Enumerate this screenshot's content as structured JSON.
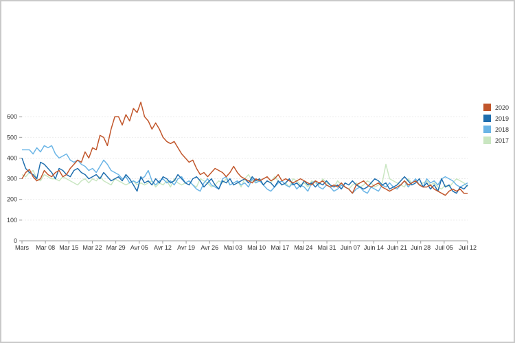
{
  "chart_data": {
    "type": "line",
    "title": "",
    "xlabel": "",
    "ylabel": "",
    "ylim": [
      0,
      700
    ],
    "yticks": [
      0,
      100,
      200,
      300,
      400,
      500,
      600
    ],
    "grid": "horizontal",
    "legend_position": "right",
    "x_tick_labels": [
      "Mars",
      "Mar 08",
      "Mar 15",
      "Mar 22",
      "Mar 29",
      "Avr 05",
      "Avr 12",
      "Avr 19",
      "Avr 26",
      "Mai 03",
      "Mai 10",
      "Mai 17",
      "Mai 24",
      "Mai 31",
      "Juin 07",
      "Juin 14",
      "Juin 21",
      "Juin 28",
      "Juil 05",
      "Juil 12"
    ],
    "series": [
      {
        "name": "2020",
        "color": "#c1562b",
        "values": [
          300,
          330,
          345,
          310,
          290,
          300,
          340,
          320,
          310,
          330,
          340,
          310,
          320,
          350,
          370,
          390,
          380,
          430,
          400,
          450,
          440,
          510,
          500,
          460,
          540,
          600,
          600,
          560,
          610,
          580,
          640,
          620,
          670,
          600,
          580,
          540,
          570,
          540,
          500,
          480,
          470,
          480,
          450,
          420,
          400,
          380,
          390,
          350,
          320,
          330,
          310,
          330,
          350,
          340,
          330,
          310,
          330,
          360,
          330,
          310,
          300,
          290,
          280,
          300,
          290,
          300,
          310,
          290,
          300,
          320,
          290,
          300,
          290,
          280,
          290,
          300,
          290,
          280,
          270,
          290,
          280,
          290,
          270,
          260,
          270,
          260,
          280,
          260,
          250,
          230,
          270,
          280,
          290,
          270,
          260,
          270,
          280,
          260,
          250,
          240,
          250,
          260,
          270,
          290,
          270,
          280,
          290,
          270,
          260,
          260,
          270,
          250,
          240,
          230,
          220,
          240,
          250,
          240,
          250,
          230,
          230
        ]
      },
      {
        "name": "2019",
        "color": "#1f6eae",
        "values": [
          400,
          350,
          330,
          320,
          300,
          380,
          370,
          350,
          330,
          300,
          350,
          340,
          320,
          310,
          340,
          350,
          330,
          320,
          300,
          310,
          320,
          300,
          330,
          310,
          290,
          300,
          310,
          290,
          320,
          300,
          270,
          240,
          310,
          280,
          290,
          270,
          300,
          280,
          310,
          300,
          280,
          290,
          320,
          300,
          280,
          270,
          300,
          310,
          290,
          260,
          280,
          300,
          270,
          250,
          290,
          280,
          300,
          270,
          280,
          290,
          300,
          280,
          310,
          290,
          300,
          270,
          290,
          280,
          260,
          290,
          270,
          280,
          300,
          270,
          280,
          260,
          290,
          270,
          280,
          260,
          280,
          270,
          290,
          270,
          260,
          270,
          250,
          280,
          270,
          290,
          270,
          260,
          250,
          260,
          280,
          300,
          290,
          270,
          280,
          250,
          260,
          270,
          290,
          310,
          290,
          270,
          280,
          300,
          260,
          280,
          250,
          270,
          240,
          300,
          260,
          270,
          240,
          230,
          260,
          250,
          270
        ]
      },
      {
        "name": "2018",
        "color": "#6bb5e6",
        "values": [
          440,
          440,
          440,
          420,
          450,
          430,
          460,
          450,
          460,
          420,
          400,
          410,
          420,
          390,
          380,
          390,
          370,
          360,
          340,
          350,
          330,
          360,
          390,
          370,
          340,
          330,
          320,
          300,
          310,
          280,
          290,
          280,
          300,
          310,
          340,
          290,
          270,
          290,
          300,
          280,
          290,
          270,
          300,
          310,
          280,
          290,
          270,
          250,
          240,
          280,
          300,
          270,
          260,
          250,
          300,
          310,
          270,
          280,
          290,
          270,
          280,
          260,
          300,
          280,
          290,
          270,
          250,
          240,
          260,
          280,
          290,
          270,
          260,
          280,
          250,
          270,
          260,
          240,
          280,
          290,
          260,
          250,
          270,
          260,
          240,
          250,
          270,
          260,
          250,
          230,
          250,
          260,
          240,
          230,
          260,
          250,
          240,
          270,
          260,
          280,
          260,
          250,
          270,
          290,
          260,
          280,
          300,
          270,
          260,
          300,
          280,
          290,
          270,
          300,
          310,
          300,
          290,
          270,
          260,
          270,
          280
        ]
      },
      {
        "name": "2017",
        "color": "#c9e6c1",
        "values": [
          320,
          310,
          330,
          340,
          300,
          290,
          320,
          310,
          300,
          300,
          290,
          310,
          300,
          290,
          280,
          270,
          290,
          300,
          280,
          300,
          290,
          310,
          290,
          280,
          270,
          300,
          290,
          280,
          270,
          280,
          290,
          270,
          280,
          270,
          280,
          290,
          260,
          280,
          270,
          290,
          260,
          300,
          280,
          270,
          280,
          290,
          270,
          260,
          300,
          290,
          280,
          260,
          270,
          290,
          280,
          300,
          270,
          280,
          290,
          260,
          300,
          320,
          290,
          280,
          300,
          270,
          290,
          280,
          310,
          290,
          270,
          280,
          260,
          300,
          290,
          270,
          280,
          260,
          290,
          280,
          270,
          300,
          280,
          270,
          260,
          290,
          270,
          260,
          250,
          270,
          280,
          260,
          270,
          290,
          280,
          260,
          270,
          280,
          370,
          300,
          290,
          280,
          270,
          260,
          300,
          280,
          290,
          270,
          280,
          290,
          270,
          280,
          260,
          250,
          270,
          260,
          280,
          300,
          290,
          280,
          260
        ]
      }
    ]
  }
}
